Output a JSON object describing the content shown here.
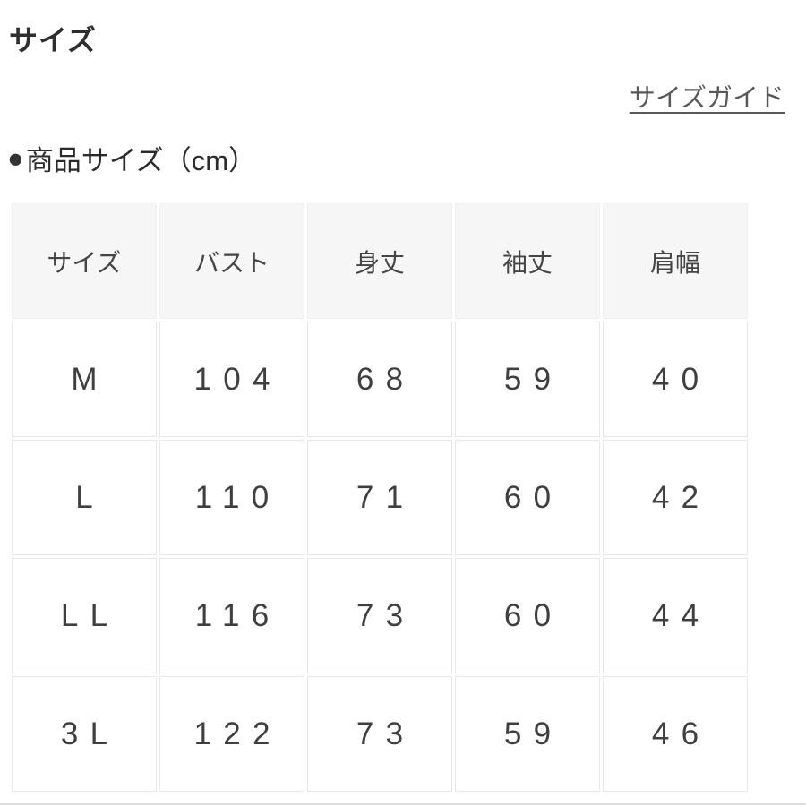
{
  "header": {
    "title": "サイズ",
    "size_guide_label": "サイズガイド"
  },
  "section": {
    "bullet": "●",
    "heading": "商品サイズ（cm）"
  },
  "size_table": {
    "columns": [
      "サイズ",
      "バスト",
      "身丈",
      "袖丈",
      "肩幅"
    ],
    "rows": [
      [
        "M",
        "104",
        "68",
        "59",
        "40"
      ],
      [
        "L",
        "110",
        "71",
        "60",
        "42"
      ],
      [
        "LL",
        "116",
        "73",
        "60",
        "44"
      ],
      [
        "3L",
        "122",
        "73",
        "59",
        "46"
      ]
    ]
  },
  "colors": {
    "header_cell_bg": "#f6f6f6",
    "cell_border": "#e8e8e8",
    "body_text": "#3f3f3f",
    "title_text": "#2e2e2e",
    "link_text": "#595959",
    "bottom_divider": "#dedede"
  }
}
